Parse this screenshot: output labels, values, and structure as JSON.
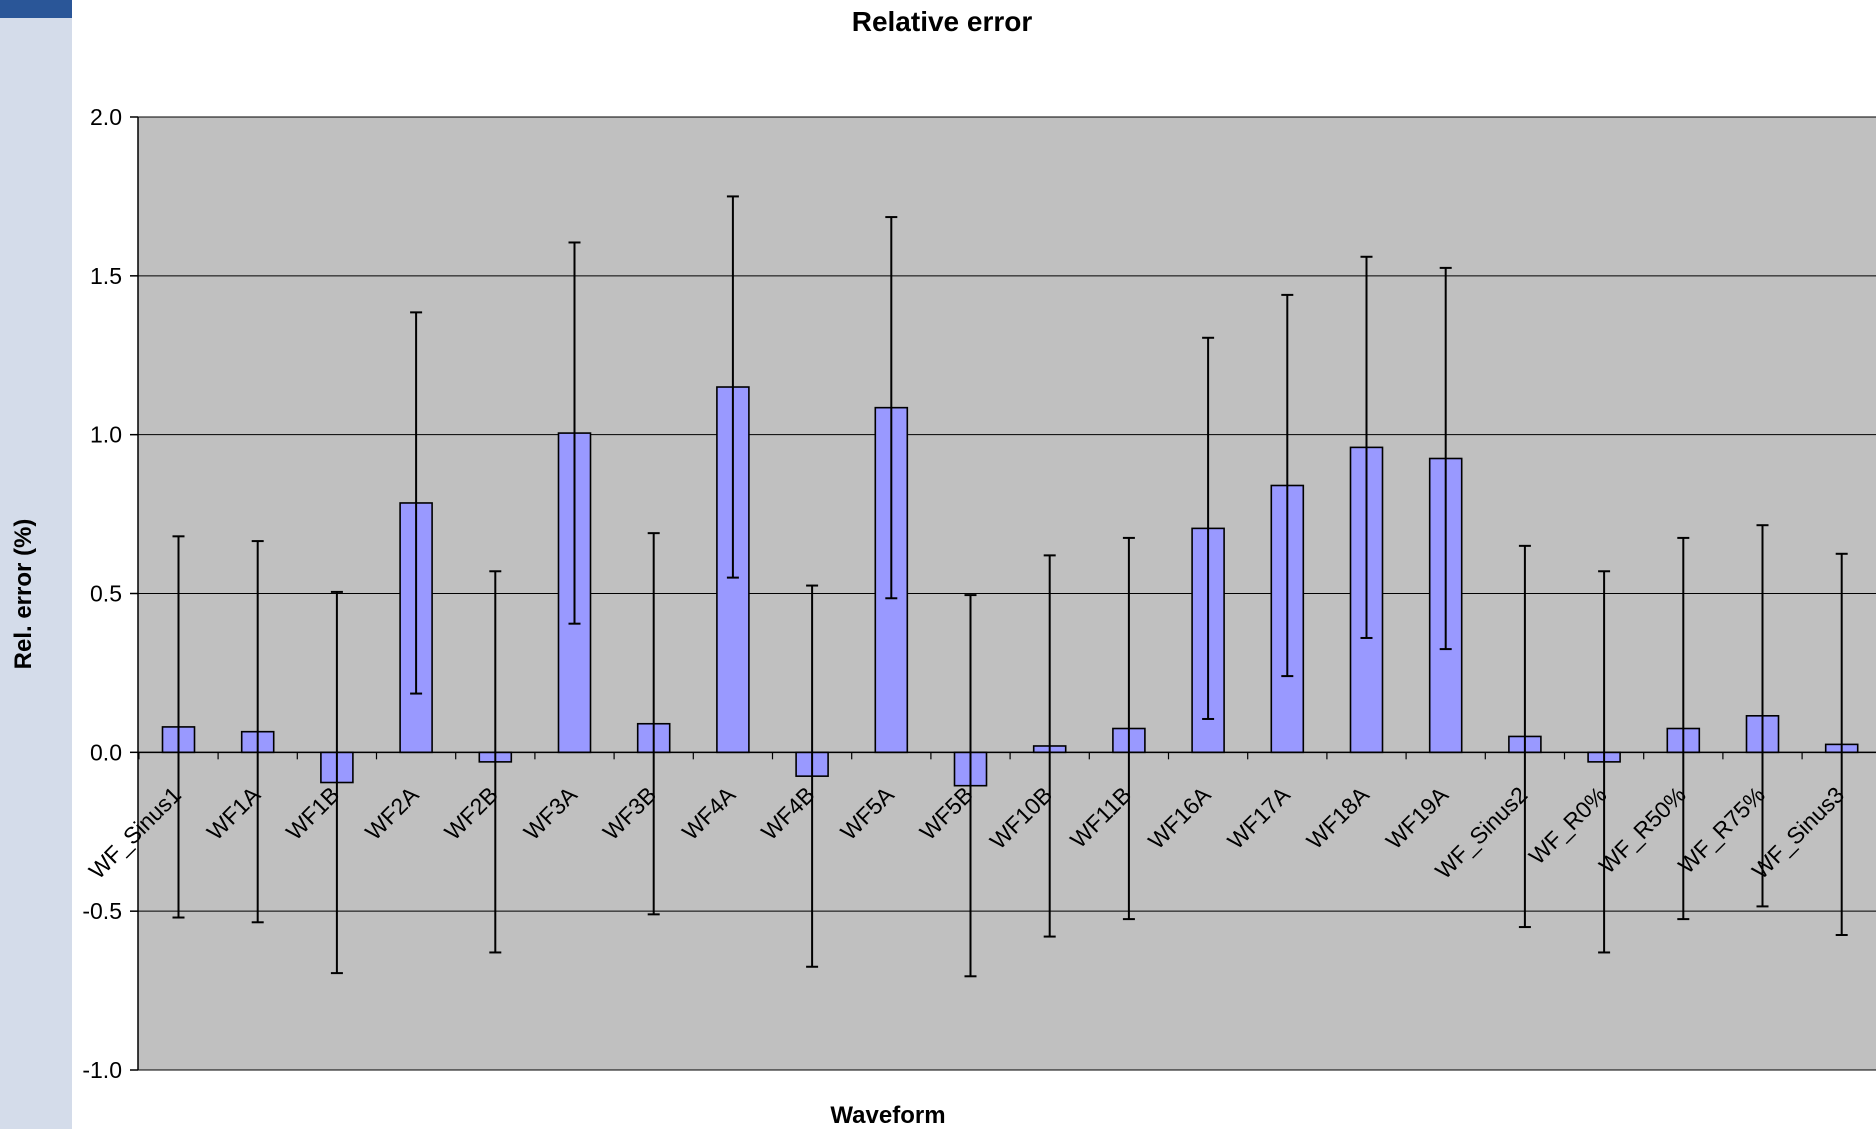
{
  "chart_data": {
    "type": "bar",
    "title": "Relative error",
    "xlabel": "Waveform",
    "ylabel": "Rel. error (%)",
    "ylim": [
      -1.0,
      2.0
    ],
    "yticks": [
      "-1.0",
      "-0.5",
      "0.0",
      "0.5",
      "1.0",
      "1.5",
      "2.0"
    ],
    "grid": true,
    "categories": [
      "WF_Sinus1",
      "WF1A",
      "WF1B",
      "WF2A",
      "WF2B",
      "WF3A",
      "WF3B",
      "WF4A",
      "WF4B",
      "WF5A",
      "WF5B",
      "WF10B",
      "WF11B",
      "WF16A",
      "WF17A",
      "WF18A",
      "WF19A",
      "WF_Sinus2",
      "WF_R0%",
      "WF_R50%",
      "WF_R75%",
      "WF_Sinus3"
    ],
    "values": [
      0.08,
      0.065,
      -0.095,
      0.785,
      -0.03,
      1.005,
      0.09,
      1.15,
      -0.075,
      1.085,
      -0.105,
      0.02,
      0.075,
      0.705,
      0.84,
      0.96,
      0.925,
      0.05,
      -0.03,
      0.075,
      0.115,
      0.025
    ],
    "error": [
      0.6,
      0.6,
      0.6,
      0.6,
      0.6,
      0.6,
      0.6,
      0.6,
      0.6,
      0.6,
      0.6,
      0.6,
      0.6,
      0.6,
      0.6,
      0.6,
      0.6,
      0.6,
      0.6,
      0.6,
      0.6,
      0.6
    ],
    "colors": {
      "bar": "#9999ff",
      "plot_bg": "#c0c0c0",
      "grid": "#000000",
      "bar_edge": "#000000"
    }
  }
}
